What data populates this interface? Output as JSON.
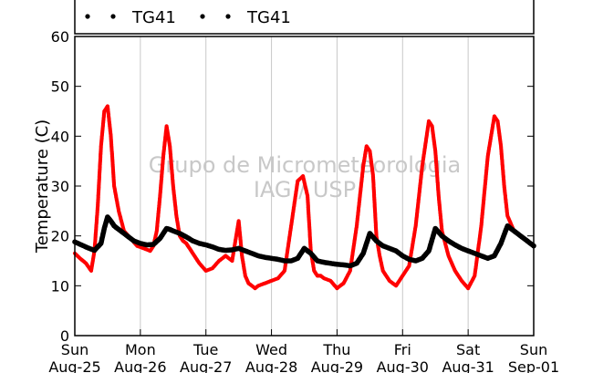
{
  "chart_data": {
    "type": "scatter",
    "title": "",
    "ylabel": "Temperature (C)",
    "xlabel": "",
    "ylim": [
      0,
      60
    ],
    "yticks": [
      0,
      10,
      20,
      30,
      40,
      50,
      60
    ],
    "xlim": [
      "Aug-25",
      "Sep-01"
    ],
    "xtick_labels": [
      {
        "day": "Sun",
        "date": "Aug-25"
      },
      {
        "day": "Mon",
        "date": "Aug-26"
      },
      {
        "day": "Tue",
        "date": "Aug-27"
      },
      {
        "day": "Wed",
        "date": "Aug-28"
      },
      {
        "day": "Thu",
        "date": "Aug-29"
      },
      {
        "day": "Fri",
        "date": "Aug-30"
      },
      {
        "day": "Sat",
        "date": "Aug-31"
      },
      {
        "day": "Sun",
        "date": "Sep-01"
      }
    ],
    "grid": "vertical",
    "legend_placement": "top",
    "watermark": [
      "Grupo de Micrometeorologia",
      "IAG / USP"
    ],
    "series": [
      {
        "name": "TG41",
        "color": "#ff0000",
        "marker": "dot",
        "x_days": [
          0.0,
          0.08,
          0.17,
          0.25,
          0.3,
          0.35,
          0.4,
          0.45,
          0.5,
          0.55,
          0.6,
          0.67,
          0.75,
          0.85,
          0.95,
          1.05,
          1.15,
          1.2,
          1.25,
          1.3,
          1.35,
          1.4,
          1.45,
          1.5,
          1.55,
          1.6,
          1.65,
          1.7,
          1.75,
          1.8,
          1.9,
          2.0,
          2.1,
          2.2,
          2.3,
          2.4,
          2.5,
          2.55,
          2.6,
          2.65,
          2.7,
          2.75,
          2.8,
          2.9,
          3.0,
          3.1,
          3.2,
          3.3,
          3.4,
          3.48,
          3.55,
          3.6,
          3.65,
          3.7,
          3.75,
          3.8,
          3.9,
          4.0,
          4.1,
          4.2,
          4.3,
          4.4,
          4.45,
          4.5,
          4.55,
          4.6,
          4.65,
          4.7,
          4.8,
          4.9,
          5.0,
          5.1,
          5.2,
          5.3,
          5.4,
          5.45,
          5.5,
          5.55,
          5.6,
          5.7,
          5.8,
          5.9,
          6.0,
          6.1,
          6.2,
          6.3,
          6.4,
          6.45,
          6.5,
          6.55,
          6.6,
          6.7,
          6.8,
          6.9,
          7.0
        ],
        "values": [
          16.5,
          15.5,
          14.5,
          13.0,
          17.0,
          26.0,
          38.0,
          45.0,
          46.0,
          40.0,
          30.0,
          25.0,
          21.0,
          19.5,
          18.0,
          17.5,
          17.0,
          18.0,
          21.0,
          28.0,
          36.0,
          42.0,
          38.0,
          30.0,
          24.0,
          20.0,
          19.0,
          18.5,
          17.5,
          16.5,
          14.5,
          13.0,
          13.5,
          15.0,
          16.0,
          15.0,
          23.0,
          16.0,
          12.0,
          10.5,
          10.0,
          9.5,
          10.0,
          10.5,
          11.0,
          11.5,
          13.0,
          22.0,
          31.0,
          32.0,
          28.0,
          17.0,
          13.0,
          12.0,
          12.0,
          11.5,
          11.0,
          9.5,
          10.5,
          13.0,
          22.0,
          34.0,
          38.0,
          37.0,
          32.0,
          20.0,
          16.0,
          13.0,
          11.0,
          10.0,
          12.0,
          14.0,
          22.0,
          34.0,
          43.0,
          42.0,
          37.0,
          28.0,
          21.0,
          16.0,
          13.0,
          11.0,
          9.5,
          12.0,
          22.0,
          36.0,
          44.0,
          43.0,
          38.0,
          30.0,
          24.0,
          21.0,
          20.0,
          19.0,
          18.0
        ]
      },
      {
        "name": "TG41",
        "color": "#000000",
        "marker": "dot",
        "x_days": [
          0.0,
          0.1,
          0.2,
          0.3,
          0.4,
          0.45,
          0.5,
          0.55,
          0.6,
          0.7,
          0.8,
          0.9,
          1.0,
          1.1,
          1.2,
          1.3,
          1.4,
          1.45,
          1.5,
          1.6,
          1.7,
          1.8,
          1.9,
          2.0,
          2.1,
          2.2,
          2.3,
          2.4,
          2.5,
          2.6,
          2.7,
          2.8,
          2.9,
          3.0,
          3.1,
          3.2,
          3.3,
          3.4,
          3.5,
          3.6,
          3.7,
          3.8,
          3.9,
          4.0,
          4.1,
          4.2,
          4.3,
          4.4,
          4.5,
          4.6,
          4.7,
          4.8,
          4.9,
          5.0,
          5.1,
          5.2,
          5.3,
          5.4,
          5.5,
          5.6,
          5.7,
          5.8,
          5.9,
          6.0,
          6.1,
          6.2,
          6.3,
          6.4,
          6.5,
          6.6,
          6.7,
          6.8,
          6.9,
          7.0
        ],
        "values": [
          18.8,
          18.2,
          17.6,
          17.1,
          18.5,
          21.5,
          23.8,
          23.0,
          22.0,
          21.0,
          20.0,
          19.0,
          18.5,
          18.2,
          18.3,
          19.5,
          21.5,
          21.3,
          21.0,
          20.5,
          19.8,
          19.0,
          18.5,
          18.2,
          17.8,
          17.3,
          17.1,
          17.2,
          17.5,
          17.0,
          16.5,
          16.0,
          15.7,
          15.5,
          15.3,
          15.0,
          15.0,
          15.5,
          17.5,
          16.5,
          15.0,
          14.7,
          14.5,
          14.3,
          14.2,
          14.0,
          14.5,
          16.5,
          20.5,
          19.0,
          18.0,
          17.5,
          17.0,
          16.0,
          15.3,
          15.0,
          15.5,
          17.0,
          21.5,
          20.0,
          19.0,
          18.2,
          17.5,
          17.0,
          16.5,
          16.0,
          15.5,
          16.0,
          18.5,
          22.0,
          21.0,
          20.0,
          19.0,
          18.0
        ]
      }
    ]
  }
}
